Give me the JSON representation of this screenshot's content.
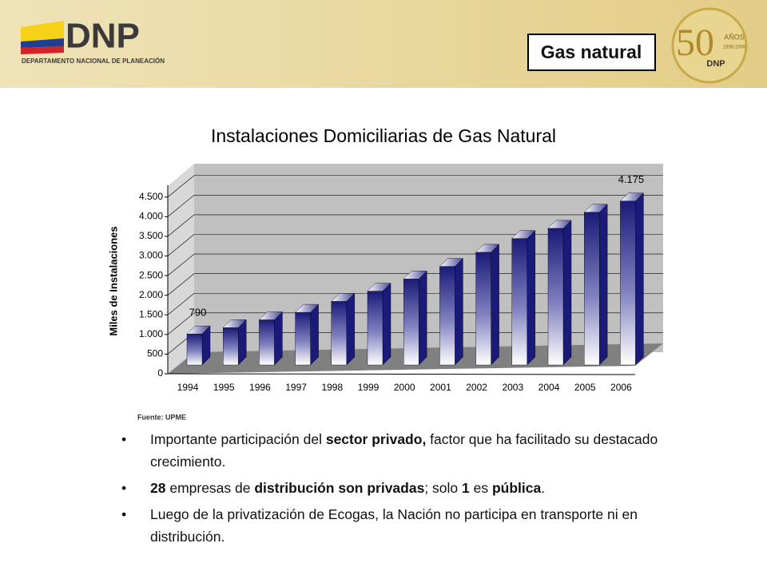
{
  "header": {
    "logo": "DNP",
    "logo_subtitle": "DEPARTAMENTO NACIONAL DE PLANEACIÓN",
    "section": "Gas natural",
    "anniversary": "50",
    "anniversary_word": "AÑOS",
    "anniversary_years": "1958-2008",
    "anniversary_logo": "DNP"
  },
  "chart_data": {
    "type": "bar3d",
    "title": "Instalaciones Domiciliarias de Gas Natural",
    "ylabel": "Miles de Instalaciones",
    "categories": [
      "1994",
      "1995",
      "1996",
      "1997",
      "1998",
      "1999",
      "2000",
      "2001",
      "2002",
      "2003",
      "2004",
      "2005",
      "2006"
    ],
    "values": [
      790,
      950,
      1150,
      1340,
      1620,
      1880,
      2190,
      2510,
      2870,
      3220,
      3480,
      3890,
      4175
    ],
    "value_labels": [
      "790",
      null,
      null,
      null,
      null,
      null,
      null,
      null,
      null,
      null,
      null,
      null,
      "4.175"
    ],
    "color": "#1a1a78",
    "ylim": [
      0,
      4800
    ],
    "yticks": [
      0,
      {
        "value": 500,
        "label": "500"
      },
      {
        "value": 1000,
        "label": "1.000"
      },
      {
        "value": 1500,
        "label": "1.500"
      },
      {
        "value": 2000,
        "label": "2.000"
      },
      {
        "value": 2500,
        "label": "2.500"
      },
      {
        "value": 3000,
        "label": "3.000"
      },
      {
        "value": 3500,
        "label": "3.500"
      },
      {
        "value": 4000,
        "label": "4.000"
      },
      {
        "value": 4500,
        "label": "4.500"
      }
    ],
    "grid": true,
    "source": "Fuente: UPME"
  },
  "bullets": [
    [
      {
        "text": "Importante participación del ",
        "bold": false
      },
      {
        "text": "sector privado,",
        "bold": true
      },
      {
        "text": " factor que ha facilitado su destacado crecimiento.",
        "bold": false
      }
    ],
    [
      {
        "text": "28",
        "bold": true
      },
      {
        "text": " empresas de ",
        "bold": false
      },
      {
        "text": "distribución son privadas",
        "bold": true
      },
      {
        "text": "; solo ",
        "bold": false
      },
      {
        "text": "1",
        "bold": true
      },
      {
        "text": " es ",
        "bold": false
      },
      {
        "text": "pública",
        "bold": true
      },
      {
        "text": ".",
        "bold": false
      }
    ],
    [
      {
        "text": "Luego de la privatización de Ecogas, la Nación no participa en transporte ni en distribución.",
        "bold": false
      }
    ]
  ]
}
